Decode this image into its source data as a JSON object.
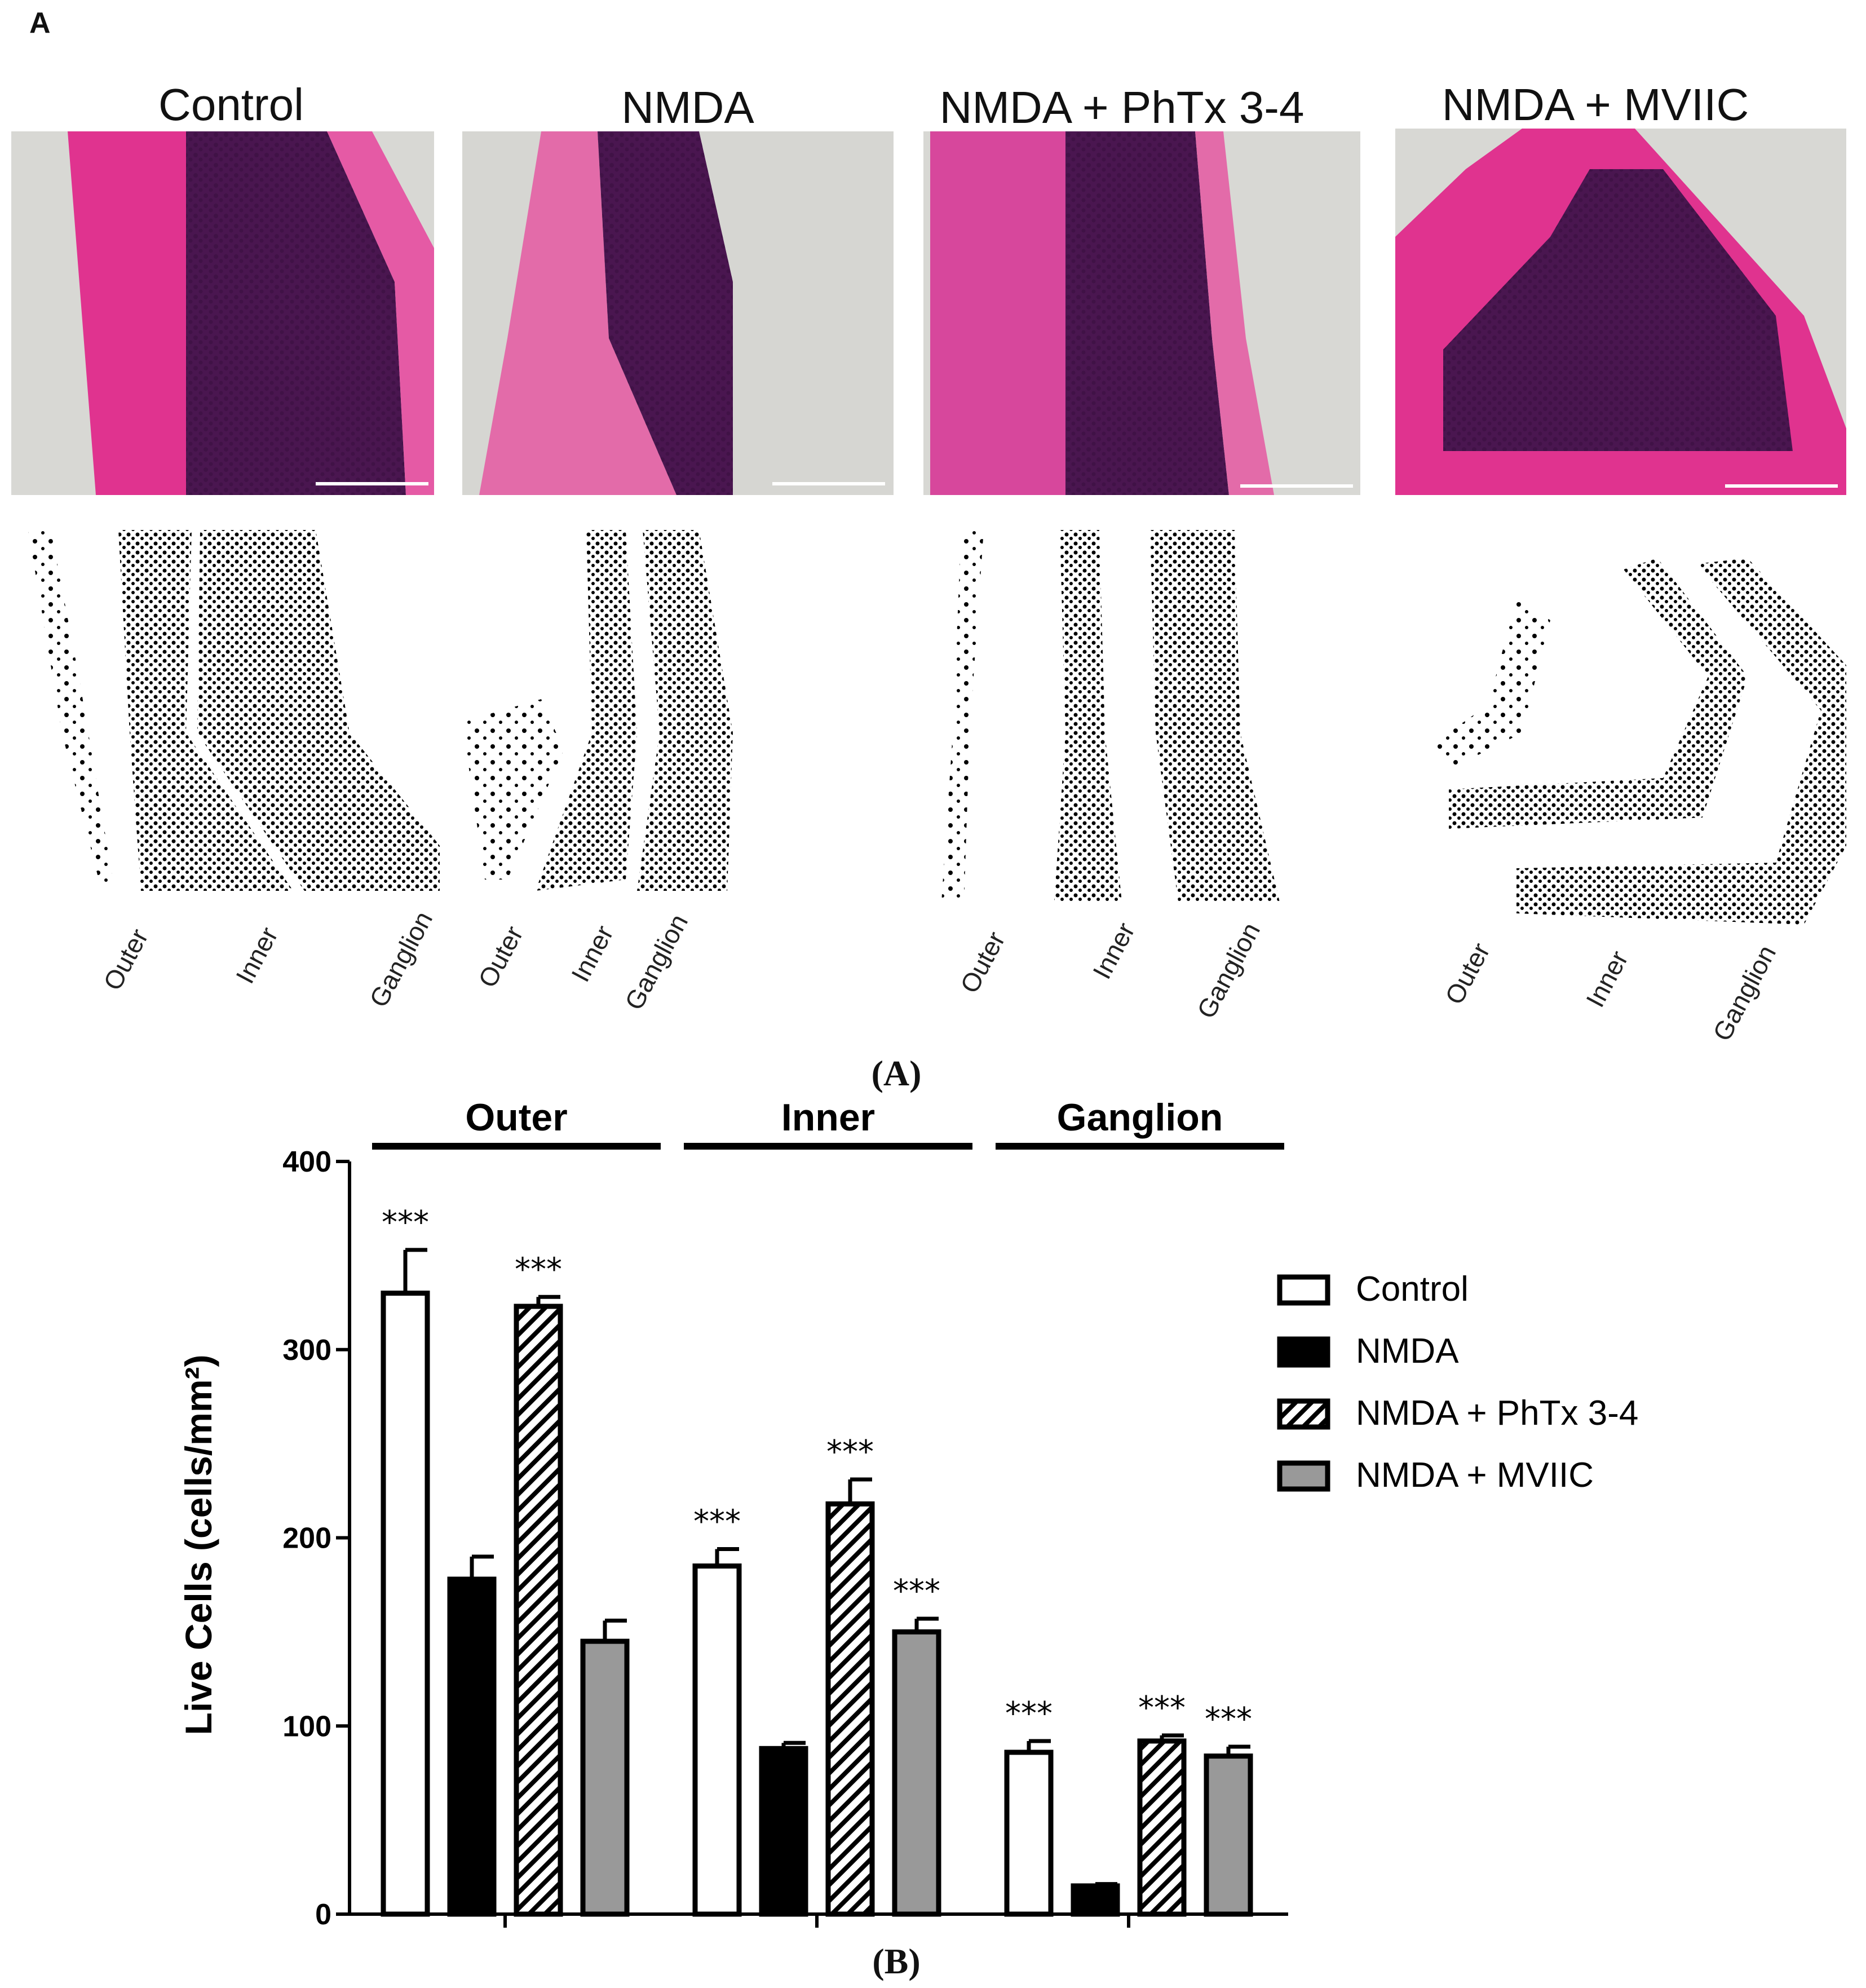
{
  "panel_a": {
    "letter": "A",
    "caption": "(A)",
    "images": [
      {
        "title": "Control",
        "layers": [
          "Outer",
          "Inner",
          "Ganglion"
        ]
      },
      {
        "title": "NMDA",
        "layers": [
          "Outer",
          "Inner",
          "Ganglion"
        ]
      },
      {
        "title": "NMDA + PhTx 3-4",
        "layers": [
          "Outer",
          "Inner",
          "Ganglion"
        ]
      },
      {
        "title": "NMDA + MVIIC",
        "layers": [
          "Outer",
          "Inner",
          "Ganglion"
        ]
      }
    ],
    "colors": {
      "stain_pink": "#e0338f",
      "stain_purple": "#4a1650",
      "background": "#d8d8d4"
    }
  },
  "panel_b": {
    "caption": "(B)"
  },
  "chart_data": {
    "type": "bar",
    "categories": [
      "Outer",
      "Inner",
      "Ganglion"
    ],
    "ylabel": "Live Cells (cells/mm²)",
    "ylim": [
      0,
      400
    ],
    "yticks": [
      0,
      100,
      200,
      300,
      400
    ],
    "legend_position": "right",
    "series": [
      {
        "name": "Control",
        "values": [
          330,
          185,
          86
        ],
        "errors": [
          23,
          9,
          6
        ],
        "fill": "#ffffff",
        "pattern": "none",
        "significance": [
          "***",
          "***",
          "***"
        ]
      },
      {
        "name": "NMDA",
        "values": [
          178,
          88,
          15
        ],
        "errors": [
          12,
          3,
          1
        ],
        "fill": "#000000",
        "pattern": "none",
        "significance": [
          "",
          "",
          ""
        ]
      },
      {
        "name": "NMDA + PhTx 3-4",
        "values": [
          323,
          218,
          92
        ],
        "errors": [
          5,
          13,
          3
        ],
        "fill": "#ffffff",
        "pattern": "hatch",
        "significance": [
          "***",
          "***",
          "***"
        ]
      },
      {
        "name": "NMDA + MVIIC",
        "values": [
          145,
          150,
          84
        ],
        "errors": [
          11,
          7,
          5
        ],
        "fill": "#999999",
        "pattern": "none",
        "significance": [
          "",
          "***",
          "***"
        ]
      }
    ]
  }
}
